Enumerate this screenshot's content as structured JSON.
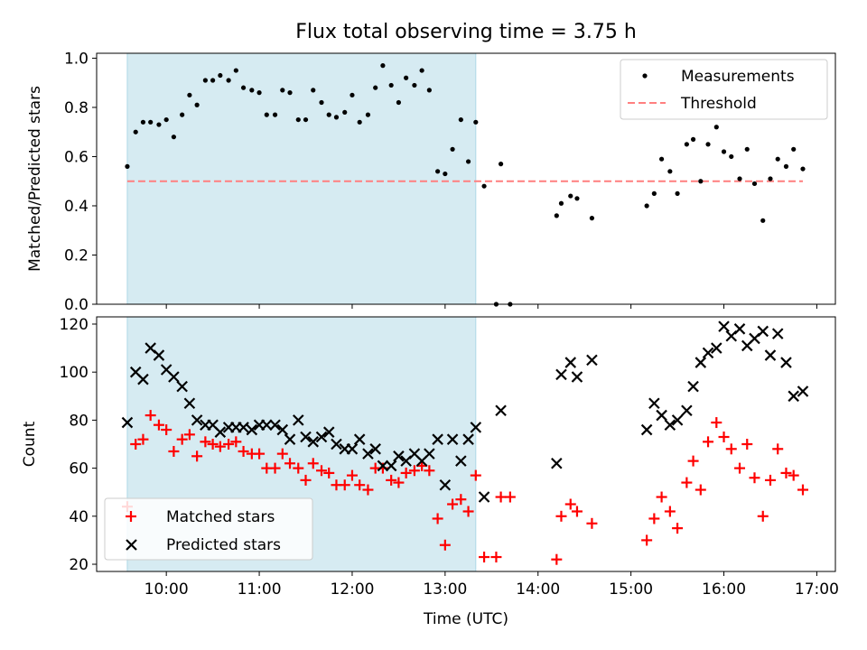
{
  "chart_data": {
    "title": "Flux total observing time = 3.75 h",
    "x_tick_labels": [
      "10:00",
      "11:00",
      "12:00",
      "13:00",
      "14:00",
      "15:00",
      "16:00",
      "17:00"
    ],
    "xlabel": "Time (UTC)",
    "xlim_hours": [
      9.25,
      17.2
    ],
    "shaded_span_hours": [
      9.58,
      13.33
    ],
    "colors": {
      "shade": "#add8e6",
      "matched": "#ff0000",
      "predicted": "#000000",
      "measurements": "#000000",
      "threshold": "#ff7f7f"
    },
    "top": {
      "type": "scatter",
      "ylabel": "Matched/Predicted stars",
      "ylim": [
        0,
        1.02
      ],
      "y_ticks": [
        "0.0",
        "0.2",
        "0.4",
        "0.6",
        "0.8",
        "1.0"
      ],
      "legend": {
        "placement": "top-right",
        "entries": [
          "Measurements",
          "Threshold"
        ]
      },
      "threshold": {
        "value": 0.5,
        "x_range": [
          9.58,
          16.85
        ]
      },
      "measurements": {
        "x": [
          9.58,
          9.67,
          9.75,
          9.83,
          9.92,
          10.0,
          10.08,
          10.17,
          10.25,
          10.33,
          10.42,
          10.5,
          10.58,
          10.67,
          10.75,
          10.83,
          10.92,
          11.0,
          11.08,
          11.17,
          11.25,
          11.33,
          11.42,
          11.5,
          11.58,
          11.67,
          11.75,
          11.83,
          11.92,
          12.0,
          12.08,
          12.17,
          12.25,
          12.33,
          12.42,
          12.5,
          12.58,
          12.67,
          12.75,
          12.83,
          12.92,
          13.0,
          13.08,
          13.17,
          13.25,
          13.33,
          13.42,
          13.55,
          13.6,
          13.7,
          14.2,
          14.25,
          14.35,
          14.42,
          14.58,
          15.17,
          15.25,
          15.33,
          15.42,
          15.5,
          15.6,
          15.67,
          15.75,
          15.83,
          15.92,
          16.0,
          16.08,
          16.17,
          16.25,
          16.33,
          16.42,
          16.5,
          16.58,
          16.67,
          16.75,
          16.85
        ],
        "y": [
          0.56,
          0.7,
          0.74,
          0.74,
          0.73,
          0.75,
          0.68,
          0.77,
          0.85,
          0.81,
          0.91,
          0.91,
          0.93,
          0.91,
          0.95,
          0.88,
          0.87,
          0.86,
          0.77,
          0.77,
          0.87,
          0.86,
          0.75,
          0.75,
          0.87,
          0.82,
          0.77,
          0.76,
          0.78,
          0.85,
          0.74,
          0.77,
          0.88,
          0.97,
          0.89,
          0.82,
          0.92,
          0.89,
          0.95,
          0.87,
          0.54,
          0.53,
          0.63,
          0.75,
          0.58,
          0.74,
          0.48,
          0.0,
          0.57,
          0.0,
          0.36,
          0.41,
          0.44,
          0.43,
          0.35,
          0.4,
          0.45,
          0.59,
          0.54,
          0.45,
          0.65,
          0.67,
          0.5,
          0.65,
          0.72,
          0.62,
          0.6,
          0.51,
          0.63,
          0.49,
          0.34,
          0.51,
          0.59,
          0.56,
          0.63,
          0.55
        ]
      }
    },
    "bottom": {
      "type": "scatter",
      "ylabel": "Count",
      "ylim": [
        17,
        123
      ],
      "y_ticks": [
        "20",
        "40",
        "60",
        "80",
        "100",
        "120"
      ],
      "legend": {
        "placement": "bottom-left",
        "entries": [
          "Matched stars",
          "Predicted stars"
        ]
      },
      "matched": {
        "x": [
          9.58,
          9.67,
          9.75,
          9.83,
          9.92,
          10.0,
          10.08,
          10.17,
          10.25,
          10.33,
          10.42,
          10.5,
          10.58,
          10.67,
          10.75,
          10.83,
          10.92,
          11.0,
          11.08,
          11.17,
          11.25,
          11.33,
          11.42,
          11.5,
          11.58,
          11.67,
          11.75,
          11.83,
          11.92,
          12.0,
          12.08,
          12.17,
          12.25,
          12.33,
          12.42,
          12.5,
          12.58,
          12.67,
          12.75,
          12.83,
          12.92,
          13.0,
          13.08,
          13.17,
          13.25,
          13.33,
          13.42,
          13.55,
          13.6,
          13.7,
          14.2,
          14.25,
          14.35,
          14.42,
          14.58,
          15.17,
          15.25,
          15.33,
          15.42,
          15.5,
          15.6,
          15.67,
          15.75,
          15.83,
          15.92,
          16.0,
          16.08,
          16.17,
          16.25,
          16.33,
          16.42,
          16.5,
          16.58,
          16.67,
          16.75,
          16.85
        ],
        "y": [
          44,
          70,
          72,
          82,
          78,
          76,
          67,
          72,
          74,
          65,
          71,
          70,
          69,
          70,
          71,
          67,
          66,
          66,
          60,
          60,
          66,
          62,
          60,
          55,
          62,
          59,
          58,
          53,
          53,
          57,
          53,
          51,
          60,
          60,
          55,
          54,
          58,
          59,
          61,
          59,
          39,
          28,
          45,
          47,
          42,
          57,
          23,
          23,
          48,
          48,
          22,
          40,
          45,
          42,
          37,
          30,
          39,
          48,
          42,
          35,
          54,
          63,
          51,
          71,
          79,
          73,
          68,
          60,
          70,
          56,
          40,
          55,
          68,
          58,
          57,
          51
        ]
      },
      "predicted": {
        "x": [
          9.58,
          9.67,
          9.75,
          9.83,
          9.92,
          10.0,
          10.08,
          10.17,
          10.25,
          10.33,
          10.42,
          10.5,
          10.58,
          10.67,
          10.75,
          10.83,
          10.92,
          11.0,
          11.08,
          11.17,
          11.25,
          11.33,
          11.42,
          11.5,
          11.58,
          11.67,
          11.75,
          11.83,
          11.92,
          12.0,
          12.08,
          12.17,
          12.25,
          12.33,
          12.42,
          12.5,
          12.58,
          12.67,
          12.75,
          12.83,
          12.92,
          13.0,
          13.08,
          13.17,
          13.25,
          13.33,
          13.42,
          13.6,
          14.2,
          14.25,
          14.35,
          14.42,
          14.58,
          15.17,
          15.25,
          15.33,
          15.42,
          15.5,
          15.6,
          15.67,
          15.75,
          15.83,
          15.92,
          16.0,
          16.08,
          16.17,
          16.25,
          16.33,
          16.42,
          16.5,
          16.58,
          16.67,
          16.75,
          16.85
        ],
        "y": [
          79,
          100,
          97,
          110,
          107,
          101,
          98,
          94,
          87,
          80,
          78,
          78,
          75,
          77,
          77,
          77,
          76,
          78,
          78,
          78,
          76,
          72,
          80,
          73,
          71,
          73,
          75,
          70,
          68,
          68,
          72,
          66,
          68,
          61,
          61,
          65,
          63,
          66,
          63,
          66,
          72,
          53,
          72,
          63,
          72,
          77,
          48,
          84,
          62,
          99,
          104,
          98,
          105,
          76,
          87,
          82,
          78,
          80,
          84,
          94,
          104,
          108,
          110,
          119,
          115,
          118,
          111,
          114,
          117,
          107,
          116,
          104,
          90,
          92
        ]
      }
    }
  }
}
